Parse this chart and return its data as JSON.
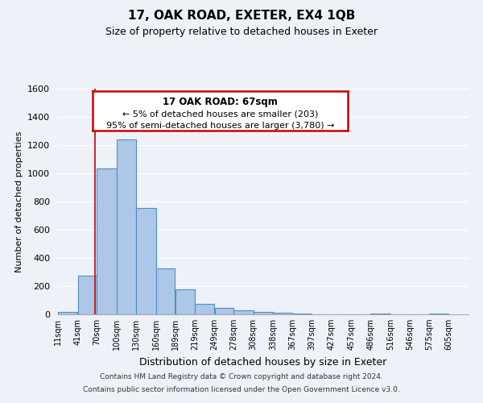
{
  "title": "17, OAK ROAD, EXETER, EX4 1QB",
  "subtitle": "Size of property relative to detached houses in Exeter",
  "xlabel": "Distribution of detached houses by size in Exeter",
  "ylabel": "Number of detached properties",
  "bar_left_edges": [
    11,
    41,
    70,
    100,
    130,
    160,
    189,
    219,
    249,
    278,
    308,
    338,
    367,
    397,
    427,
    457,
    486,
    516,
    546,
    575
  ],
  "bar_heights": [
    15,
    275,
    1035,
    1240,
    755,
    325,
    180,
    75,
    45,
    30,
    20,
    10,
    5,
    0,
    0,
    0,
    5,
    0,
    0,
    5
  ],
  "bar_widths": [
    30,
    29,
    30,
    30,
    30,
    29,
    30,
    30,
    29,
    30,
    30,
    29,
    30,
    30,
    30,
    29,
    30,
    30,
    29,
    30
  ],
  "tick_labels": [
    "11sqm",
    "41sqm",
    "70sqm",
    "100sqm",
    "130sqm",
    "160sqm",
    "189sqm",
    "219sqm",
    "249sqm",
    "278sqm",
    "308sqm",
    "338sqm",
    "367sqm",
    "397sqm",
    "427sqm",
    "457sqm",
    "486sqm",
    "516sqm",
    "546sqm",
    "575sqm",
    "605sqm"
  ],
  "tick_positions": [
    11,
    41,
    70,
    100,
    130,
    160,
    189,
    219,
    249,
    278,
    308,
    338,
    367,
    397,
    427,
    457,
    486,
    516,
    546,
    575,
    605
  ],
  "ylim": [
    0,
    1600
  ],
  "xlim": [
    11,
    635
  ],
  "bar_color": "#aec6e8",
  "bar_edge_color": "#4a90c4",
  "red_line_x": 67,
  "annotation_title": "17 OAK ROAD: 67sqm",
  "annotation_line1": "← 5% of detached houses are smaller (203)",
  "annotation_line2": "95% of semi-detached houses are larger (3,780) →",
  "annotation_box_color": "#ffffff",
  "annotation_box_edge_color": "#cc0000",
  "footer_line1": "Contains HM Land Registry data © Crown copyright and database right 2024.",
  "footer_line2": "Contains public sector information licensed under the Open Government Licence v3.0.",
  "bg_color": "#eef1f8",
  "plot_bg_color": "#eef1f8",
  "grid_color": "#ffffff",
  "yticks": [
    0,
    200,
    400,
    600,
    800,
    1000,
    1200,
    1400,
    1600
  ]
}
